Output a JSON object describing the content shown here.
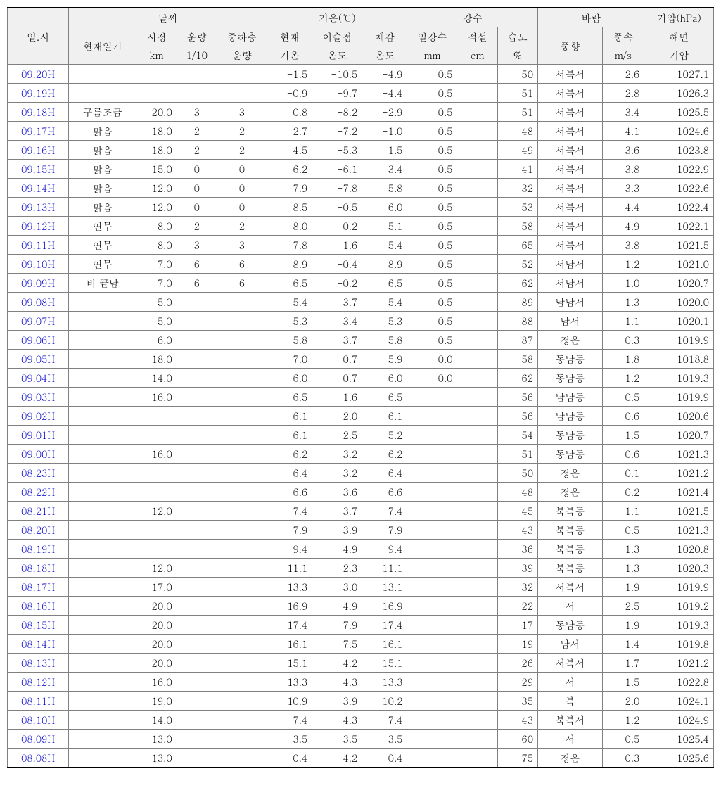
{
  "headers": {
    "group_time": "일.시",
    "group_weather": "날씨",
    "group_temp": "기온(℃)",
    "group_precip": "강수",
    "group_wind": "바람",
    "group_press": "기압(hPa)",
    "col_weather": "현재일기",
    "col_vis1": "시정",
    "col_vis2": "km",
    "col_cloud1": "운량",
    "col_cloud2": "1/10",
    "col_cloud_mid1": "중하층",
    "col_cloud_mid2": "운량",
    "col_temp1": "현재",
    "col_temp2": "기온",
    "col_dew1": "이슬점",
    "col_dew2": "온도",
    "col_feel1": "체감",
    "col_feel2": "온도",
    "col_rain1": "일강수",
    "col_rain2": "mm",
    "col_snow1": "적설",
    "col_snow2": "cm",
    "col_hum1": "습도",
    "col_hum2": "%",
    "col_wdir": "풍향",
    "col_wspd1": "풍속",
    "col_wspd2": "m/s",
    "col_press1": "해면",
    "col_press2": "기압"
  },
  "rows": [
    {
      "time": "09.20H",
      "weather": "",
      "vis": "",
      "cloud": "",
      "cloud2": "",
      "temp": "-1.5",
      "dew": "-10.5",
      "feel": "-4.9",
      "rain": "0.5",
      "snow": "",
      "hum": "50",
      "wdir": "서북서",
      "wspd": "2.6",
      "press": "1027.1"
    },
    {
      "time": "09.19H",
      "weather": "",
      "vis": "",
      "cloud": "",
      "cloud2": "",
      "temp": "-0.9",
      "dew": "-9.7",
      "feel": "-4.4",
      "rain": "0.5",
      "snow": "",
      "hum": "51",
      "wdir": "서북서",
      "wspd": "2.8",
      "press": "1026.3"
    },
    {
      "time": "09.18H",
      "weather": "구름조금",
      "vis": "20.0",
      "cloud": "3",
      "cloud2": "3",
      "temp": "0.8",
      "dew": "-8.2",
      "feel": "-2.9",
      "rain": "0.5",
      "snow": "",
      "hum": "51",
      "wdir": "서북서",
      "wspd": "3.4",
      "press": "1025.5"
    },
    {
      "time": "09.17H",
      "weather": "맑음",
      "vis": "18.0",
      "cloud": "2",
      "cloud2": "2",
      "temp": "2.7",
      "dew": "-7.2",
      "feel": "-1.0",
      "rain": "0.5",
      "snow": "",
      "hum": "48",
      "wdir": "서북서",
      "wspd": "4.1",
      "press": "1024.6"
    },
    {
      "time": "09.16H",
      "weather": "맑음",
      "vis": "18.0",
      "cloud": "2",
      "cloud2": "2",
      "temp": "4.5",
      "dew": "-5.3",
      "feel": "1.5",
      "rain": "0.5",
      "snow": "",
      "hum": "49",
      "wdir": "서북서",
      "wspd": "3.6",
      "press": "1023.8"
    },
    {
      "time": "09.15H",
      "weather": "맑음",
      "vis": "15.0",
      "cloud": "0",
      "cloud2": "0",
      "temp": "6.2",
      "dew": "-6.1",
      "feel": "3.4",
      "rain": "0.5",
      "snow": "",
      "hum": "41",
      "wdir": "서북서",
      "wspd": "3.8",
      "press": "1022.9"
    },
    {
      "time": "09.14H",
      "weather": "맑음",
      "vis": "12.0",
      "cloud": "0",
      "cloud2": "0",
      "temp": "7.9",
      "dew": "-7.8",
      "feel": "5.8",
      "rain": "0.5",
      "snow": "",
      "hum": "32",
      "wdir": "서북서",
      "wspd": "3.3",
      "press": "1022.6"
    },
    {
      "time": "09.13H",
      "weather": "맑음",
      "vis": "12.0",
      "cloud": "0",
      "cloud2": "0",
      "temp": "8.5",
      "dew": "-0.5",
      "feel": "6.0",
      "rain": "0.5",
      "snow": "",
      "hum": "53",
      "wdir": "서북서",
      "wspd": "4.4",
      "press": "1022.4"
    },
    {
      "time": "09.12H",
      "weather": "연무",
      "vis": "8.0",
      "cloud": "2",
      "cloud2": "2",
      "temp": "8.0",
      "dew": "0.2",
      "feel": "5.1",
      "rain": "0.5",
      "snow": "",
      "hum": "58",
      "wdir": "서북서",
      "wspd": "4.9",
      "press": "1022.1"
    },
    {
      "time": "09.11H",
      "weather": "연무",
      "vis": "8.0",
      "cloud": "3",
      "cloud2": "3",
      "temp": "7.8",
      "dew": "1.6",
      "feel": "5.4",
      "rain": "0.5",
      "snow": "",
      "hum": "65",
      "wdir": "서북서",
      "wspd": "3.8",
      "press": "1021.5"
    },
    {
      "time": "09.10H",
      "weather": "연무",
      "vis": "7.0",
      "cloud": "6",
      "cloud2": "6",
      "temp": "8.9",
      "dew": "-0.4",
      "feel": "8.9",
      "rain": "0.5",
      "snow": "",
      "hum": "52",
      "wdir": "서남서",
      "wspd": "1.2",
      "press": "1021.0"
    },
    {
      "time": "09.09H",
      "weather": "비 끝남",
      "vis": "7.0",
      "cloud": "6",
      "cloud2": "6",
      "temp": "6.5",
      "dew": "-0.2",
      "feel": "6.5",
      "rain": "0.5",
      "snow": "",
      "hum": "62",
      "wdir": "서남서",
      "wspd": "1.0",
      "press": "1020.7"
    },
    {
      "time": "09.08H",
      "weather": "",
      "vis": "5.0",
      "cloud": "",
      "cloud2": "",
      "temp": "5.4",
      "dew": "3.7",
      "feel": "5.4",
      "rain": "0.5",
      "snow": "",
      "hum": "89",
      "wdir": "남남서",
      "wspd": "1.3",
      "press": "1020.0"
    },
    {
      "time": "09.07H",
      "weather": "",
      "vis": "5.0",
      "cloud": "",
      "cloud2": "",
      "temp": "5.3",
      "dew": "3.4",
      "feel": "5.3",
      "rain": "0.5",
      "snow": "",
      "hum": "88",
      "wdir": "남서",
      "wspd": "1.1",
      "press": "1020.1"
    },
    {
      "time": "09.06H",
      "weather": "",
      "vis": "6.0",
      "cloud": "",
      "cloud2": "",
      "temp": "5.8",
      "dew": "3.7",
      "feel": "5.8",
      "rain": "0.5",
      "snow": "",
      "hum": "87",
      "wdir": "정온",
      "wspd": "0.3",
      "press": "1019.9"
    },
    {
      "time": "09.05H",
      "weather": "",
      "vis": "18.0",
      "cloud": "",
      "cloud2": "",
      "temp": "7.0",
      "dew": "-0.7",
      "feel": "5.9",
      "rain": "0.0",
      "snow": "",
      "hum": "58",
      "wdir": "동남동",
      "wspd": "1.8",
      "press": "1018.8"
    },
    {
      "time": "09.04H",
      "weather": "",
      "vis": "14.0",
      "cloud": "",
      "cloud2": "",
      "temp": "6.0",
      "dew": "-0.7",
      "feel": "6.0",
      "rain": "0.0",
      "snow": "",
      "hum": "62",
      "wdir": "동남동",
      "wspd": "1.2",
      "press": "1019.3"
    },
    {
      "time": "09.03H",
      "weather": "",
      "vis": "16.0",
      "cloud": "",
      "cloud2": "",
      "temp": "6.5",
      "dew": "-1.6",
      "feel": "6.5",
      "rain": "",
      "snow": "",
      "hum": "56",
      "wdir": "남남동",
      "wspd": "0.5",
      "press": "1019.9"
    },
    {
      "time": "09.02H",
      "weather": "",
      "vis": "",
      "cloud": "",
      "cloud2": "",
      "temp": "6.1",
      "dew": "-2.0",
      "feel": "6.1",
      "rain": "",
      "snow": "",
      "hum": "56",
      "wdir": "남남동",
      "wspd": "0.6",
      "press": "1020.6"
    },
    {
      "time": "09.01H",
      "weather": "",
      "vis": "",
      "cloud": "",
      "cloud2": "",
      "temp": "6.1",
      "dew": "-2.5",
      "feel": "5.2",
      "rain": "",
      "snow": "",
      "hum": "54",
      "wdir": "동남동",
      "wspd": "1.5",
      "press": "1020.7"
    },
    {
      "time": "09.00H",
      "weather": "",
      "vis": "16.0",
      "cloud": "",
      "cloud2": "",
      "temp": "6.2",
      "dew": "-3.2",
      "feel": "6.2",
      "rain": "",
      "snow": "",
      "hum": "51",
      "wdir": "동남동",
      "wspd": "0.6",
      "press": "1021.3"
    },
    {
      "time": "08.23H",
      "weather": "",
      "vis": "",
      "cloud": "",
      "cloud2": "",
      "temp": "6.4",
      "dew": "-3.2",
      "feel": "6.4",
      "rain": "",
      "snow": "",
      "hum": "50",
      "wdir": "정온",
      "wspd": "0.1",
      "press": "1021.2"
    },
    {
      "time": "08.22H",
      "weather": "",
      "vis": "",
      "cloud": "",
      "cloud2": "",
      "temp": "6.6",
      "dew": "-3.6",
      "feel": "6.6",
      "rain": "",
      "snow": "",
      "hum": "48",
      "wdir": "정온",
      "wspd": "0.2",
      "press": "1021.4"
    },
    {
      "time": "08.21H",
      "weather": "",
      "vis": "12.0",
      "cloud": "",
      "cloud2": "",
      "temp": "7.4",
      "dew": "-3.7",
      "feel": "7.4",
      "rain": "",
      "snow": "",
      "hum": "45",
      "wdir": "북북동",
      "wspd": "1.1",
      "press": "1021.5"
    },
    {
      "time": "08.20H",
      "weather": "",
      "vis": "",
      "cloud": "",
      "cloud2": "",
      "temp": "7.9",
      "dew": "-3.9",
      "feel": "7.9",
      "rain": "",
      "snow": "",
      "hum": "43",
      "wdir": "북북동",
      "wspd": "0.5",
      "press": "1021.3"
    },
    {
      "time": "08.19H",
      "weather": "",
      "vis": "",
      "cloud": "",
      "cloud2": "",
      "temp": "9.4",
      "dew": "-4.9",
      "feel": "9.4",
      "rain": "",
      "snow": "",
      "hum": "36",
      "wdir": "북북동",
      "wspd": "1.3",
      "press": "1020.8"
    },
    {
      "time": "08.18H",
      "weather": "",
      "vis": "12.0",
      "cloud": "",
      "cloud2": "",
      "temp": "11.1",
      "dew": "-2.3",
      "feel": "11.1",
      "rain": "",
      "snow": "",
      "hum": "39",
      "wdir": "북북동",
      "wspd": "1.3",
      "press": "1020.3"
    },
    {
      "time": "08.17H",
      "weather": "",
      "vis": "17.0",
      "cloud": "",
      "cloud2": "",
      "temp": "13.3",
      "dew": "-3.0",
      "feel": "13.1",
      "rain": "",
      "snow": "",
      "hum": "32",
      "wdir": "서북서",
      "wspd": "1.9",
      "press": "1019.9"
    },
    {
      "time": "08.16H",
      "weather": "",
      "vis": "20.0",
      "cloud": "",
      "cloud2": "",
      "temp": "16.9",
      "dew": "-4.9",
      "feel": "16.9",
      "rain": "",
      "snow": "",
      "hum": "22",
      "wdir": "서",
      "wspd": "2.5",
      "press": "1019.2"
    },
    {
      "time": "08.15H",
      "weather": "",
      "vis": "20.0",
      "cloud": "",
      "cloud2": "",
      "temp": "17.4",
      "dew": "-7.9",
      "feel": "17.4",
      "rain": "",
      "snow": "",
      "hum": "17",
      "wdir": "동남동",
      "wspd": "1.9",
      "press": "1019.3"
    },
    {
      "time": "08.14H",
      "weather": "",
      "vis": "20.0",
      "cloud": "",
      "cloud2": "",
      "temp": "16.1",
      "dew": "-7.5",
      "feel": "16.1",
      "rain": "",
      "snow": "",
      "hum": "19",
      "wdir": "남서",
      "wspd": "1.4",
      "press": "1019.8"
    },
    {
      "time": "08.13H",
      "weather": "",
      "vis": "20.0",
      "cloud": "",
      "cloud2": "",
      "temp": "15.1",
      "dew": "-4.2",
      "feel": "15.1",
      "rain": "",
      "snow": "",
      "hum": "26",
      "wdir": "서북서",
      "wspd": "1.7",
      "press": "1021.2"
    },
    {
      "time": "08.12H",
      "weather": "",
      "vis": "16.0",
      "cloud": "",
      "cloud2": "",
      "temp": "13.3",
      "dew": "-4.3",
      "feel": "13.3",
      "rain": "",
      "snow": "",
      "hum": "29",
      "wdir": "서",
      "wspd": "1.5",
      "press": "1022.8"
    },
    {
      "time": "08.11H",
      "weather": "",
      "vis": "19.0",
      "cloud": "",
      "cloud2": "",
      "temp": "10.9",
      "dew": "-3.9",
      "feel": "10.2",
      "rain": "",
      "snow": "",
      "hum": "35",
      "wdir": "북",
      "wspd": "2.0",
      "press": "1024.1"
    },
    {
      "time": "08.10H",
      "weather": "",
      "vis": "14.0",
      "cloud": "",
      "cloud2": "",
      "temp": "7.4",
      "dew": "-4.3",
      "feel": "7.4",
      "rain": "",
      "snow": "",
      "hum": "43",
      "wdir": "북북서",
      "wspd": "1.2",
      "press": "1024.9"
    },
    {
      "time": "08.09H",
      "weather": "",
      "vis": "13.0",
      "cloud": "",
      "cloud2": "",
      "temp": "3.5",
      "dew": "-3.5",
      "feel": "3.5",
      "rain": "",
      "snow": "",
      "hum": "60",
      "wdir": "서",
      "wspd": "0.5",
      "press": "1025.4"
    },
    {
      "time": "08.08H",
      "weather": "",
      "vis": "13.0",
      "cloud": "",
      "cloud2": "",
      "temp": "-0.4",
      "dew": "-4.2",
      "feel": "-0.4",
      "rain": "",
      "snow": "",
      "hum": "75",
      "wdir": "정온",
      "wspd": "0.3",
      "press": "1025.6"
    }
  ]
}
